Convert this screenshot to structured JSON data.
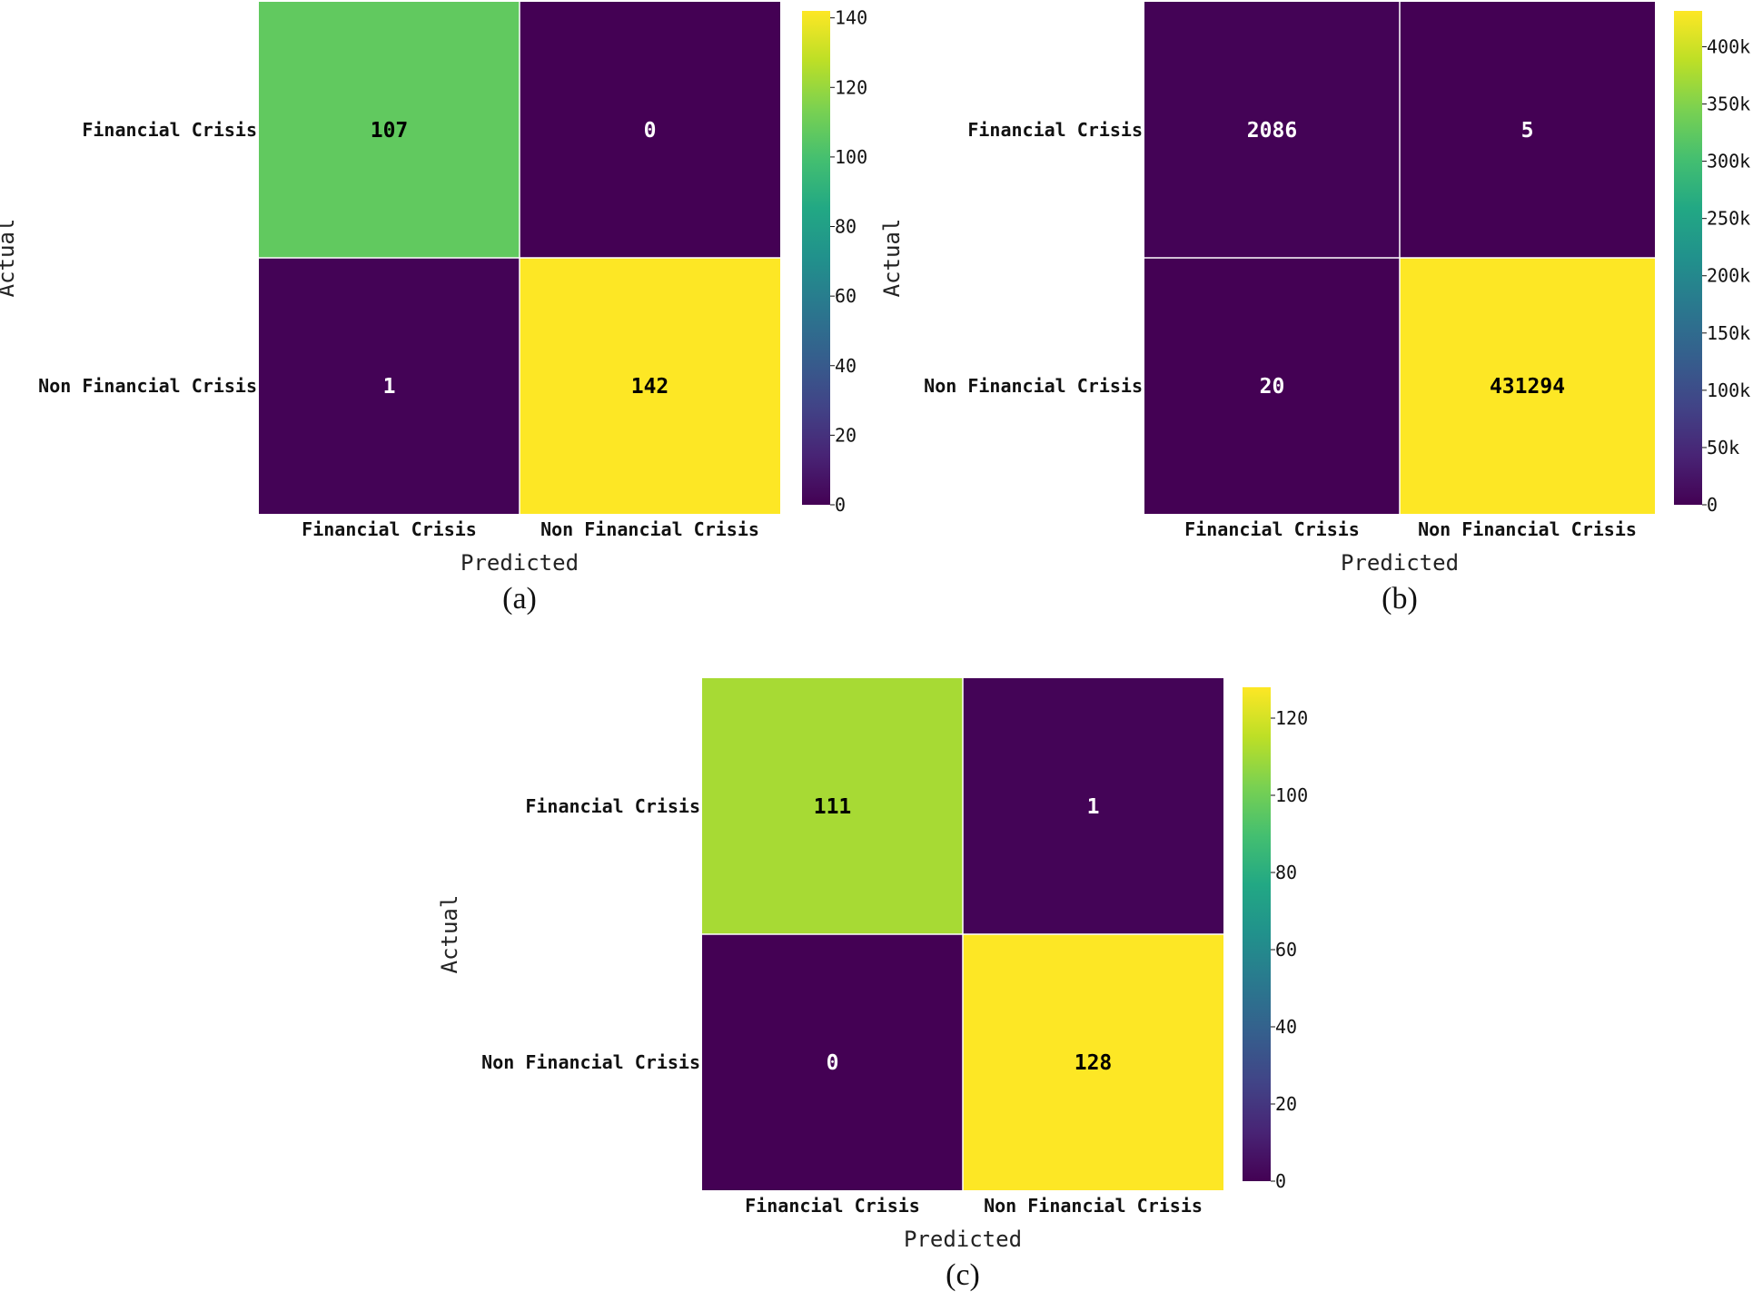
{
  "chart_data": [
    {
      "type": "heatmap",
      "panel_label": "(a)",
      "xlabel": "Predicted",
      "ylabel": "Actual",
      "x_categories": [
        "Financial Crisis",
        "Non Financial Crisis"
      ],
      "y_categories": [
        "Financial Crisis",
        "Non Financial Crisis"
      ],
      "matrix": [
        [
          107,
          0
        ],
        [
          1,
          142
        ]
      ],
      "cell_labels": [
        [
          "107",
          "0"
        ],
        [
          "1",
          "142"
        ]
      ],
      "colorbar": {
        "min": 0,
        "max": 142,
        "ticks": [
          0,
          20,
          40,
          60,
          80,
          100,
          120,
          140
        ],
        "tick_labels": [
          "0",
          "20",
          "40",
          "60",
          "80",
          "100",
          "120",
          "140"
        ]
      },
      "colormap": "viridis"
    },
    {
      "type": "heatmap",
      "panel_label": "(b)",
      "xlabel": "Predicted",
      "ylabel": "Actual",
      "x_categories": [
        "Financial Crisis",
        "Non Financial Crisis"
      ],
      "y_categories": [
        "Financial Crisis",
        "Non Financial Crisis"
      ],
      "matrix": [
        [
          2086,
          5
        ],
        [
          20,
          431294
        ]
      ],
      "cell_labels": [
        [
          "2086",
          "5"
        ],
        [
          "20",
          "431294"
        ]
      ],
      "colorbar": {
        "min": 0,
        "max": 431294,
        "ticks": [
          0,
          50000,
          100000,
          150000,
          200000,
          250000,
          300000,
          350000,
          400000
        ],
        "tick_labels": [
          "0",
          "50k",
          "100k",
          "150k",
          "200k",
          "250k",
          "300k",
          "350k",
          "400k"
        ]
      },
      "colormap": "viridis"
    },
    {
      "type": "heatmap",
      "panel_label": "(c)",
      "xlabel": "Predicted",
      "ylabel": "Actual",
      "x_categories": [
        "Financial Crisis",
        "Non Financial Crisis"
      ],
      "y_categories": [
        "Financial Crisis",
        "Non Financial Crisis"
      ],
      "matrix": [
        [
          111,
          1
        ],
        [
          0,
          128
        ]
      ],
      "cell_labels": [
        [
          "111",
          "1"
        ],
        [
          "0",
          "128"
        ]
      ],
      "colorbar": {
        "min": 0,
        "max": 128,
        "ticks": [
          0,
          20,
          40,
          60,
          80,
          100,
          120
        ],
        "tick_labels": [
          "0",
          "20",
          "40",
          "60",
          "80",
          "100",
          "120"
        ]
      },
      "colormap": "viridis"
    }
  ]
}
